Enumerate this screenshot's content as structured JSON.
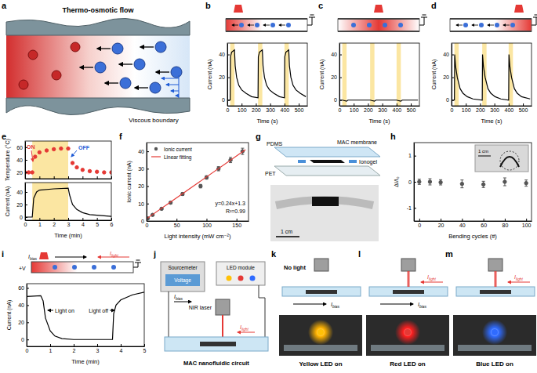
{
  "chart_data": [
    {
      "type": "line",
      "xlabel": "Time (s)",
      "ylabel": "Current (nA)",
      "xlim": [
        0,
        560
      ],
      "ylim": [
        -5,
        50
      ],
      "xticks": [
        0,
        100,
        200,
        300,
        400,
        500
      ],
      "yticks": [
        0,
        20,
        40
      ],
      "bands": [
        [
          20,
          50
        ],
        [
          215,
          245
        ],
        [
          400,
          430
        ]
      ],
      "series": [
        {
          "color": "#000000",
          "x": [
            0,
            20,
            22,
            30,
            50,
            55,
            65,
            80,
            100,
            130,
            170,
            215,
            217,
            225,
            245,
            250,
            260,
            275,
            295,
            325,
            365,
            400,
            402,
            410,
            430,
            435,
            445,
            460,
            480,
            510,
            550
          ],
          "values": [
            0,
            0,
            38,
            42,
            44,
            30,
            20,
            13,
            9,
            6,
            3,
            2,
            38,
            42,
            44,
            30,
            20,
            13,
            9,
            6,
            3,
            2,
            38,
            42,
            44,
            30,
            20,
            13,
            9,
            6,
            3
          ]
        }
      ]
    },
    {
      "type": "line",
      "xlabel": "Time (s)",
      "ylabel": "Current (nA)",
      "xlim": [
        0,
        560
      ],
      "ylim": [
        -5,
        50
      ],
      "xticks": [
        0,
        100,
        200,
        300,
        400,
        500
      ],
      "yticks": [
        0,
        20,
        40
      ],
      "bands": [
        [
          20,
          50
        ],
        [
          215,
          245
        ],
        [
          400,
          430
        ]
      ],
      "series": [
        {
          "color": "#000000",
          "x": [
            0,
            20,
            50,
            60,
            215,
            245,
            255,
            400,
            430,
            440,
            550
          ],
          "values": [
            0,
            0,
            -1,
            0,
            0,
            -1,
            0,
            0,
            -1,
            0,
            0
          ]
        }
      ]
    },
    {
      "type": "line",
      "xlabel": "Time (s)",
      "ylabel": "Current (nA)",
      "xlim": [
        0,
        560
      ],
      "ylim": [
        -5,
        50
      ],
      "xticks": [
        0,
        100,
        200,
        300,
        400,
        500
      ],
      "yticks": [
        0,
        20,
        40
      ],
      "bands": [
        [
          20,
          50
        ],
        [
          215,
          245
        ],
        [
          400,
          430
        ]
      ],
      "series": [
        {
          "color": "#000000",
          "x": [
            0,
            20,
            22,
            28,
            40,
            50,
            60,
            80,
            110,
            150,
            215,
            217,
            223,
            235,
            245,
            255,
            275,
            305,
            345,
            400,
            402,
            408,
            420,
            430,
            440,
            460,
            490,
            550
          ],
          "values": [
            0,
            0,
            40,
            30,
            20,
            15,
            10,
            6,
            3,
            1,
            0,
            40,
            30,
            20,
            15,
            10,
            6,
            3,
            1,
            0,
            40,
            30,
            20,
            15,
            10,
            6,
            3,
            1
          ]
        }
      ]
    },
    {
      "type": "scatter",
      "ylabel": "Temperature (°C)",
      "xlim": [
        0,
        6
      ],
      "ylim": [
        10,
        70
      ],
      "xticks": [
        0,
        1,
        2,
        3,
        4,
        5,
        6
      ],
      "yticks": [
        20,
        40,
        60
      ],
      "tick_labels": "y",
      "bands": [
        [
          0.5,
          3
        ]
      ],
      "annotations": [
        "ON",
        "OFF"
      ],
      "series": [
        {
          "color": "#e53935",
          "marker": "circle",
          "x": [
            0,
            0.25,
            0.5,
            0.7,
            1,
            1.5,
            2,
            2.5,
            3,
            3.3,
            3.6,
            4,
            4.5,
            5,
            5.5,
            6
          ],
          "values": [
            20,
            20,
            20,
            45,
            52,
            55,
            57,
            58,
            58,
            35,
            28,
            24,
            22,
            21,
            20,
            20
          ]
        }
      ]
    },
    {
      "type": "line",
      "xlabel": "Time (min)",
      "ylabel": "Current (nA)",
      "xlim": [
        0,
        6
      ],
      "ylim": [
        -5,
        55
      ],
      "xticks": [
        0,
        1,
        2,
        3,
        4,
        5,
        6
      ],
      "yticks": [
        0,
        20,
        40
      ],
      "bands": [
        [
          0.5,
          3
        ]
      ],
      "series": [
        {
          "color": "#000000",
          "x": [
            0,
            0.5,
            0.6,
            0.8,
            1,
            2,
            3,
            3.1,
            3.3,
            3.6,
            4,
            4.5,
            5,
            5.5,
            6
          ],
          "values": [
            0,
            0,
            30,
            40,
            43,
            45,
            46,
            35,
            20,
            12,
            7,
            4,
            3,
            2,
            1
          ]
        }
      ]
    },
    {
      "type": "scatter",
      "xlabel": "Light intensity (mW cm⁻²)",
      "ylabel": "Ionic current (nA)",
      "xlim": [
        0,
        170
      ],
      "ylim": [
        0,
        45
      ],
      "xticks": [
        0,
        50,
        100,
        150
      ],
      "yticks": [
        0,
        10,
        20,
        30,
        40
      ],
      "legend": "upper left",
      "annotations": [
        "y=0.24x+1.3",
        "R²=0.99"
      ],
      "series": [
        {
          "name": "Ionic current",
          "color": "#555555",
          "marker": "circle",
          "x": [
            2,
            10,
            25,
            40,
            60,
            90,
            100,
            120,
            140,
            160
          ],
          "values": [
            1.5,
            3.5,
            7,
            10.5,
            15.5,
            20,
            25,
            30,
            35,
            40
          ],
          "errors": [
            0.3,
            0.4,
            0.5,
            0.6,
            0.8,
            1,
            1,
            1.2,
            1.5,
            1.8
          ]
        },
        {
          "name": "Linear fitting",
          "type": "line",
          "line_style": "solid",
          "color": "#e53935",
          "x": [
            0,
            165
          ],
          "values": [
            1.3,
            40.9
          ]
        }
      ]
    },
    {
      "type": "scatter",
      "xlabel": "Bending cycles (#)",
      "ylabel": "ΔI/I₀",
      "xlim": [
        -5,
        105
      ],
      "ylim": [
        -1.5,
        1.5
      ],
      "xticks": [
        0,
        20,
        40,
        60,
        80,
        100
      ],
      "yticks": [
        -1,
        0,
        1
      ],
      "annotations": [
        "1 cm"
      ],
      "series": [
        {
          "color": "#555555",
          "marker": "circle",
          "x": [
            0,
            10,
            20,
            40,
            60,
            80,
            100
          ],
          "values": [
            0,
            0,
            -0.02,
            -0.08,
            -0.1,
            0,
            -0.05
          ],
          "errors": [
            0.1,
            0.12,
            0.1,
            0.15,
            0.12,
            0.15,
            0.12
          ]
        }
      ]
    },
    {
      "type": "line",
      "xlabel": "Time (min)",
      "ylabel": "Current (nA)",
      "xlim": [
        0,
        5
      ],
      "ylim": [
        -8,
        65
      ],
      "xticks": [
        0,
        1,
        2,
        3,
        4,
        5
      ],
      "yticks": [
        0,
        20,
        40,
        60
      ],
      "annotations": [
        "Light on",
        "Light off"
      ],
      "series": [
        {
          "color": "#000000",
          "x": [
            0,
            0.6,
            0.7,
            0.8,
            1,
            1.2,
            1.5,
            2,
            2.5,
            3,
            3.5,
            3.65,
            3.7,
            3.8,
            4,
            4.5,
            5
          ],
          "values": [
            50,
            51,
            45,
            25,
            10,
            4,
            1,
            0,
            0,
            0,
            0,
            0,
            30,
            40,
            46,
            52,
            55
          ]
        }
      ]
    }
  ],
  "panel_labels": [
    "a",
    "b",
    "c",
    "d",
    "e",
    "f",
    "g",
    "h",
    "i",
    "j",
    "k",
    "l",
    "m"
  ],
  "diagrams": {
    "a": {
      "title": "Thermo-osmotic flow",
      "boundary": "Viscous boundary"
    },
    "g": {
      "pdms": "PDMS",
      "membrane": "MAC membrane",
      "pet": "PET",
      "ionogel": "Ionogel",
      "scale": "1 cm"
    },
    "i": {
      "bias": {
        "main": "I",
        "sub": "bias"
      },
      "light": {
        "main": "I",
        "sub": "light"
      },
      "voltage": "+V"
    },
    "j": {
      "sourcemeter": "Sourcemeter",
      "voltage": "Voltage",
      "led": "LED module",
      "laser": "NIR laser",
      "bias": {
        "main": "I",
        "sub": "bias"
      },
      "light": {
        "main": "I",
        "sub": "light"
      },
      "circuit": "MAC nanofluidic circuit"
    },
    "k": {
      "state": "No light",
      "bias": {
        "main": "I",
        "sub": "bias"
      },
      "caption": "Yellow LED on"
    },
    "l": {
      "light": {
        "main": "I",
        "sub": "light"
      },
      "bias": {
        "main": "I",
        "sub": "bias"
      },
      "caption": "Red LED on"
    },
    "m": {
      "light": {
        "main": "I",
        "sub": "light"
      },
      "caption": "Blue LED on"
    }
  }
}
